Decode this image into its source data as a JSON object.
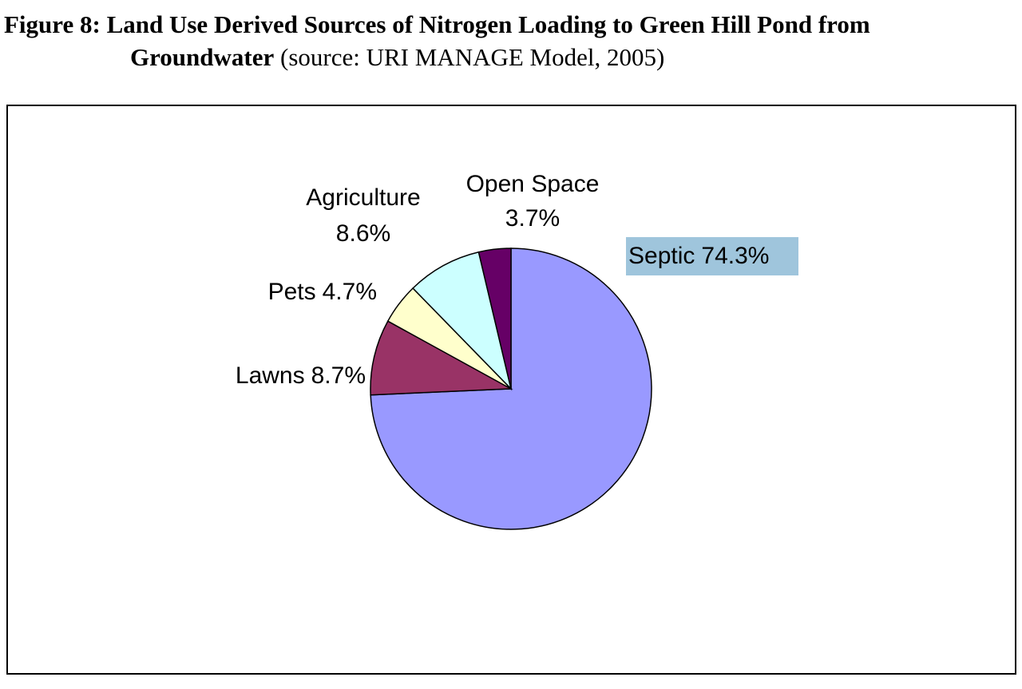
{
  "chart_data": {
    "type": "pie",
    "title": "Figure 8:  Land Use Derived Sources of Nitrogen Loading to Green Hill Pond from Groundwater",
    "subtitle": "(source:  URI MANAGE Model, 2005)",
    "categories": [
      "Septic",
      "Lawns",
      "Pets",
      "Agriculture",
      "Open Space"
    ],
    "values": [
      74.3,
      8.7,
      4.7,
      8.6,
      3.7
    ],
    "value_labels": [
      "74.3%",
      "8.7%",
      "4.7%",
      "8.6%",
      "3.7%"
    ],
    "colors": [
      "#9999ff",
      "#993366",
      "#ffffcc",
      "#ccffff",
      "#660066"
    ]
  }
}
